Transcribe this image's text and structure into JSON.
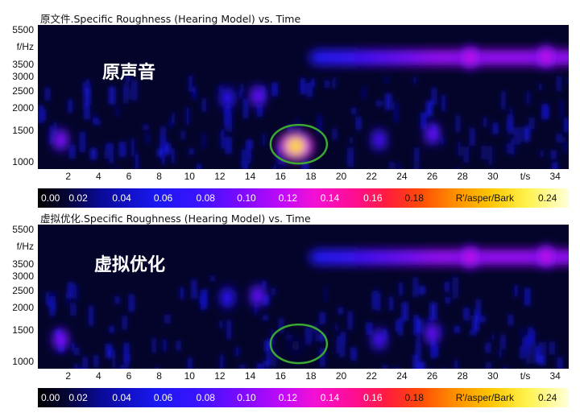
{
  "panels": [
    {
      "title": "原文件.Specific Roughness (Hearing Model) vs. Time",
      "annotation": "原声音",
      "variant": "original"
    },
    {
      "title": "虚拟优化.Specific Roughness (Hearing Model) vs. Time",
      "annotation": "虚拟优化",
      "variant": "optimized"
    }
  ],
  "colorbar": {
    "ticks": [
      "0.00",
      "0.02",
      "0.04",
      "0.06",
      "0.08",
      "0.10",
      "0.12",
      "0.14",
      "0.16",
      "0.18",
      "0.24"
    ],
    "unit": "R'/asper/Bark"
  },
  "colors": {
    "highlight_ellipse": "#3aa832",
    "background": "#ffffff"
  },
  "chart_data": [
    {
      "type": "heatmap",
      "title": "原文件.Specific Roughness (Hearing Model) vs. Time",
      "xlabel": "t/s",
      "ylabel": "f/Hz",
      "x_ticks": [
        2,
        4,
        6,
        8,
        10,
        12,
        14,
        16,
        18,
        20,
        22,
        24,
        26,
        28,
        30,
        34
      ],
      "y_ticks": [
        1000,
        1500,
        2000,
        2500,
        3000,
        3500,
        5500
      ],
      "xlim": [
        0,
        35
      ],
      "ylim": [
        900,
        5500
      ],
      "colorbar_range": [
        0,
        0.24
      ],
      "colorbar_label": "R'/asper/Bark",
      "hotspots": [
        {
          "t": 1.5,
          "f": 1300,
          "value": 0.1
        },
        {
          "t": 12.5,
          "f": 2200,
          "value": 0.07
        },
        {
          "t": 14.5,
          "f": 2250,
          "value": 0.09
        },
        {
          "t": 17.0,
          "f": 1200,
          "value": 0.21
        },
        {
          "t": 22.5,
          "f": 1300,
          "value": 0.08
        },
        {
          "t": 26.0,
          "f": 1400,
          "value": 0.09
        },
        {
          "t": 28.5,
          "f": 3650,
          "value": 0.12
        },
        {
          "t": 33.5,
          "f": 3700,
          "value": 0.12
        }
      ],
      "annotation": "原声音"
    },
    {
      "type": "heatmap",
      "title": "虚拟优化.Specific Roughness (Hearing Model) vs. Time",
      "xlabel": "t/s",
      "ylabel": "f/Hz",
      "x_ticks": [
        2,
        4,
        6,
        8,
        10,
        12,
        14,
        16,
        18,
        20,
        22,
        24,
        26,
        28,
        30,
        34
      ],
      "y_ticks": [
        1000,
        1500,
        2000,
        2500,
        3000,
        3500,
        5500
      ],
      "xlim": [
        0,
        35
      ],
      "ylim": [
        900,
        5500
      ],
      "colorbar_range": [
        0,
        0.24
      ],
      "colorbar_label": "R'/asper/Bark",
      "hotspots": [
        {
          "t": 1.5,
          "f": 1300,
          "value": 0.1
        },
        {
          "t": 12.5,
          "f": 2200,
          "value": 0.07
        },
        {
          "t": 14.5,
          "f": 2250,
          "value": 0.09
        },
        {
          "t": 17.0,
          "f": 1200,
          "value": 0.02
        },
        {
          "t": 22.5,
          "f": 1300,
          "value": 0.08
        },
        {
          "t": 26.0,
          "f": 1400,
          "value": 0.09
        },
        {
          "t": 28.5,
          "f": 3650,
          "value": 0.12
        },
        {
          "t": 33.5,
          "f": 3700,
          "value": 0.12
        }
      ],
      "annotation": "虚拟优化"
    }
  ]
}
